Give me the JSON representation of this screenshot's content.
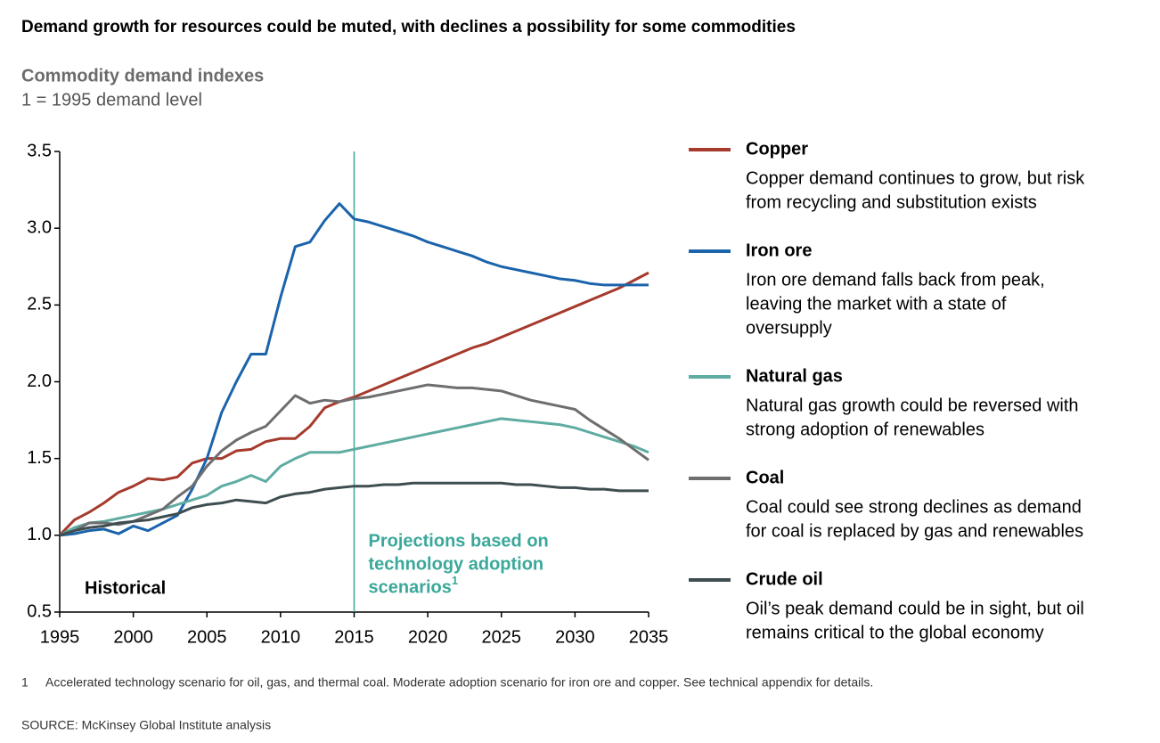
{
  "chart_data": {
    "type": "line",
    "title": "Demand growth for resources could be muted, with declines a possibility for some commodities",
    "subtitle": "Commodity demand indexes",
    "y_axis_label": "1 = 1995 demand level",
    "x": [
      1995,
      1996,
      1997,
      1998,
      1999,
      2000,
      2001,
      2002,
      2003,
      2004,
      2005,
      2006,
      2007,
      2008,
      2009,
      2010,
      2011,
      2012,
      2013,
      2014,
      2015,
      2016,
      2017,
      2018,
      2019,
      2020,
      2021,
      2022,
      2023,
      2024,
      2025,
      2026,
      2027,
      2028,
      2029,
      2030,
      2031,
      2032,
      2033,
      2034,
      2035
    ],
    "xlim": [
      1995,
      2035
    ],
    "xticks": [
      1995,
      2000,
      2005,
      2010,
      2015,
      2020,
      2025,
      2030,
      2035
    ],
    "ylim": [
      0.5,
      3.5
    ],
    "yticks": [
      0.5,
      {
        "value": 1,
        "label": "1.0"
      },
      1.5,
      {
        "value": 2,
        "label": "2.0"
      },
      2.5,
      {
        "value": 3,
        "label": "3.0"
      },
      3.5
    ],
    "projection_start": 2015,
    "annotations": {
      "historical": "Historical",
      "projections": [
        "Projections based on",
        "technology adoption",
        "scenarios"
      ],
      "projections_note_marker": "1"
    },
    "series": [
      {
        "name": "Copper",
        "color": "#a63a2c",
        "description": [
          "Copper demand continues to grow, but risk",
          "from recycling and substitution exists"
        ],
        "values": [
          1.0,
          1.1,
          1.15,
          1.21,
          1.28,
          1.32,
          1.37,
          1.36,
          1.38,
          1.47,
          1.5,
          1.5,
          1.55,
          1.56,
          1.61,
          1.63,
          1.63,
          1.71,
          1.83,
          1.87,
          1.9,
          1.94,
          1.98,
          2.02,
          2.06,
          2.1,
          2.14,
          2.18,
          2.22,
          2.25,
          2.29,
          2.33,
          2.37,
          2.41,
          2.45,
          2.49,
          2.53,
          2.57,
          2.61,
          2.66,
          2.71
        ]
      },
      {
        "name": "Iron ore",
        "color": "#1b63ab",
        "description": [
          "Iron ore demand falls back from peak,",
          "leaving the market with a state of",
          "oversupply"
        ],
        "values": [
          1.0,
          1.01,
          1.03,
          1.04,
          1.01,
          1.06,
          1.03,
          1.08,
          1.13,
          1.3,
          1.5,
          1.8,
          2.0,
          2.18,
          2.18,
          2.55,
          2.88,
          2.91,
          3.05,
          3.16,
          3.06,
          3.04,
          3.01,
          2.98,
          2.95,
          2.91,
          2.88,
          2.85,
          2.82,
          2.78,
          2.75,
          2.73,
          2.71,
          2.69,
          2.67,
          2.66,
          2.64,
          2.63,
          2.63,
          2.63,
          2.63
        ]
      },
      {
        "name": "Natural gas",
        "color": "#5eaca2",
        "description": [
          "Natural gas growth could be reversed with",
          "strong adoption of renewables"
        ],
        "values": [
          1.0,
          1.05,
          1.08,
          1.09,
          1.11,
          1.13,
          1.15,
          1.17,
          1.2,
          1.23,
          1.26,
          1.32,
          1.35,
          1.39,
          1.35,
          1.45,
          1.5,
          1.54,
          1.54,
          1.54,
          1.56,
          1.58,
          1.6,
          1.62,
          1.64,
          1.66,
          1.68,
          1.7,
          1.72,
          1.74,
          1.76,
          1.75,
          1.74,
          1.73,
          1.72,
          1.7,
          1.67,
          1.64,
          1.61,
          1.58,
          1.54
        ]
      },
      {
        "name": "Coal",
        "color": "#6e6e70",
        "description": [
          "Coal could see strong declines as demand",
          "for coal is replaced by gas and renewables"
        ],
        "values": [
          1.0,
          1.03,
          1.08,
          1.08,
          1.07,
          1.09,
          1.13,
          1.17,
          1.25,
          1.32,
          1.45,
          1.55,
          1.62,
          1.67,
          1.71,
          1.81,
          1.91,
          1.86,
          1.88,
          1.87,
          1.89,
          1.9,
          1.92,
          1.94,
          1.96,
          1.98,
          1.97,
          1.96,
          1.96,
          1.95,
          1.94,
          1.91,
          1.88,
          1.86,
          1.84,
          1.82,
          1.75,
          1.69,
          1.63,
          1.56,
          1.49
        ]
      },
      {
        "name": "Crude oil",
        "color": "#3e4d50",
        "description": [
          "Oil’s peak demand could be in sight, but oil",
          "remains critical to the global economy"
        ],
        "values": [
          1.0,
          1.03,
          1.05,
          1.06,
          1.08,
          1.09,
          1.1,
          1.12,
          1.14,
          1.18,
          1.2,
          1.21,
          1.23,
          1.22,
          1.21,
          1.25,
          1.27,
          1.28,
          1.3,
          1.31,
          1.32,
          1.32,
          1.33,
          1.33,
          1.34,
          1.34,
          1.34,
          1.34,
          1.34,
          1.34,
          1.34,
          1.33,
          1.33,
          1.32,
          1.31,
          1.31,
          1.3,
          1.3,
          1.29,
          1.29,
          1.29
        ]
      }
    ],
    "footnote": {
      "marker": "1",
      "text": "Accelerated technology scenario for oil, gas, and thermal coal. Moderate adoption scenario for iron ore and copper. See technical appendix for details."
    },
    "source": "SOURCE:  McKinsey Global Institute analysis"
  }
}
